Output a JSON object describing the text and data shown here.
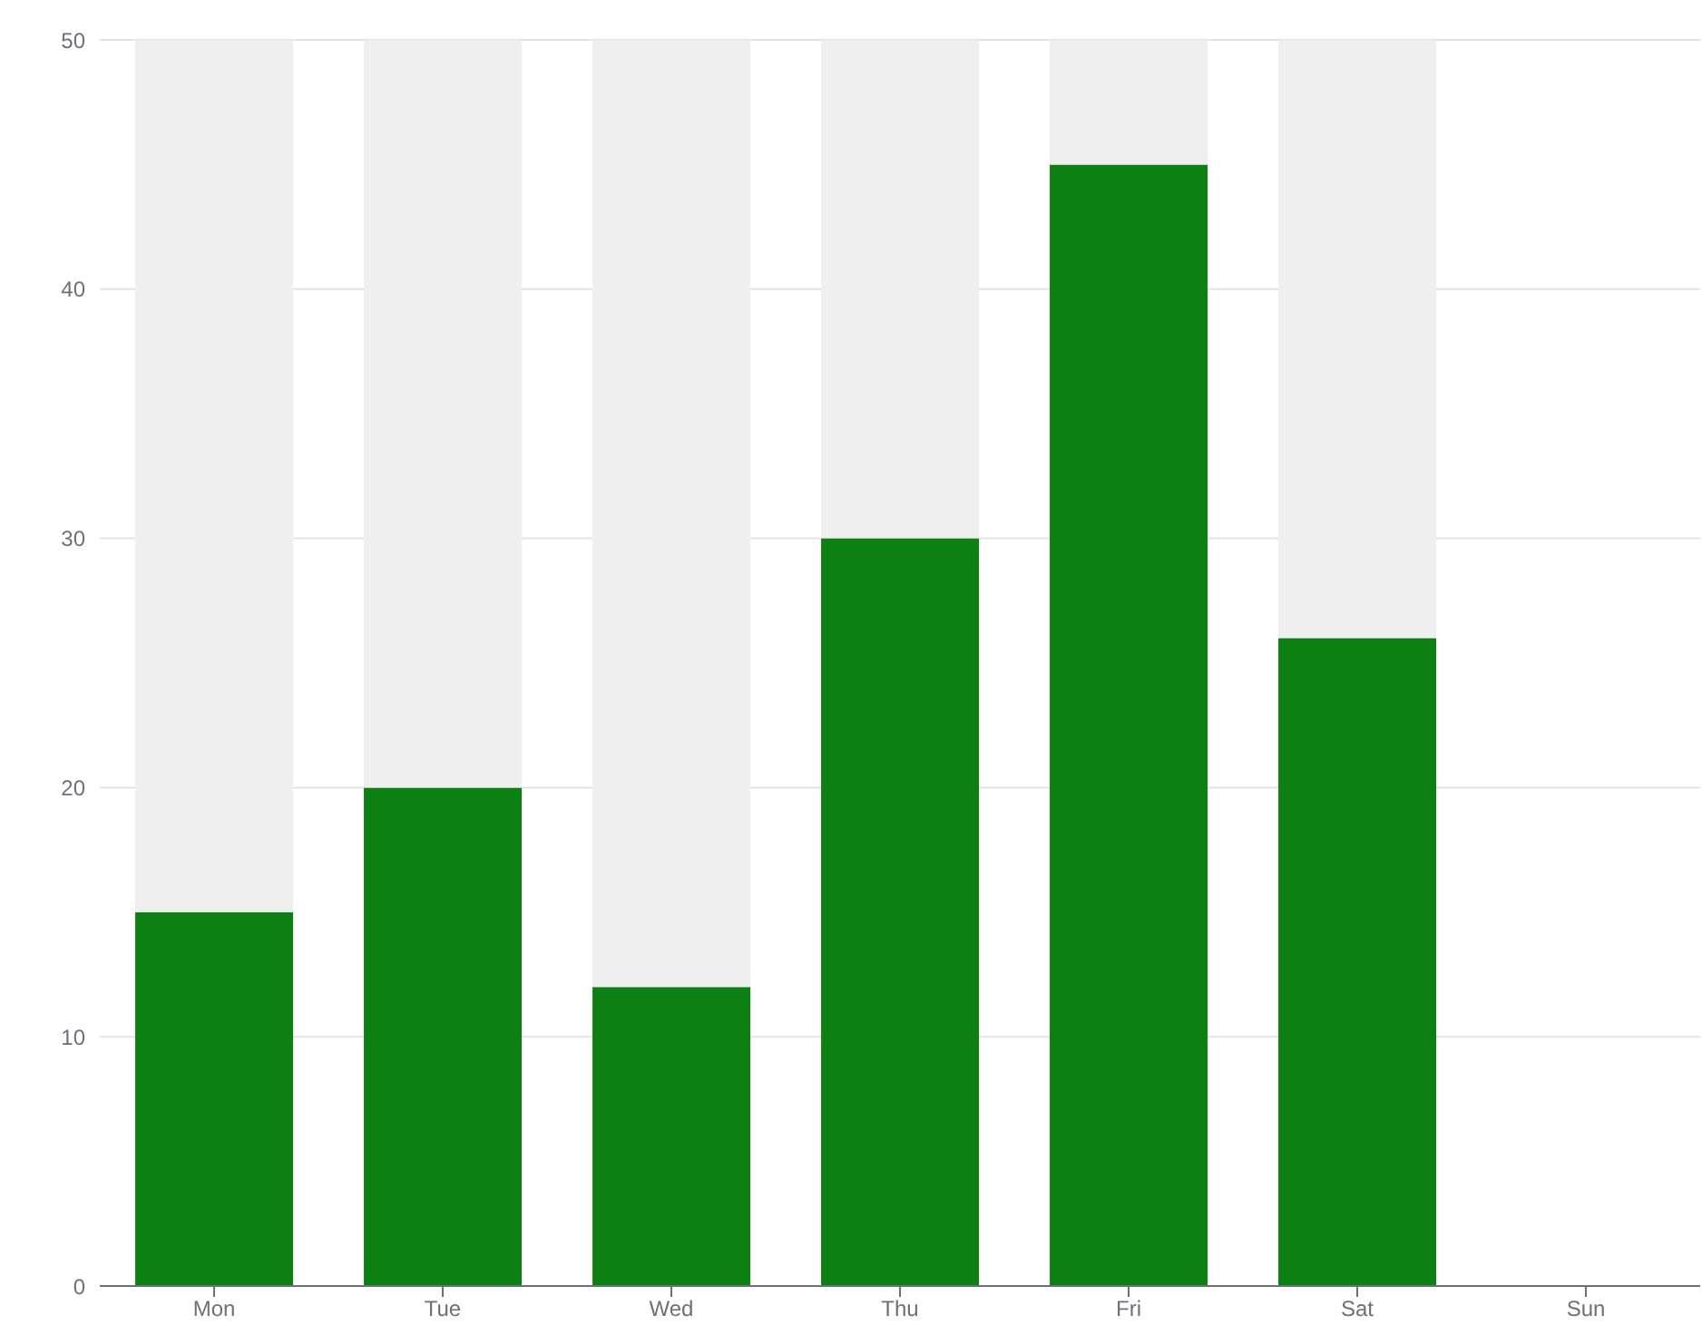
{
  "chart_data": {
    "type": "bar",
    "stacked": true,
    "categories": [
      "Mon",
      "Tue",
      "Wed",
      "Thu",
      "Fri",
      "Sat",
      "Sun"
    ],
    "series": [
      {
        "color": "#0c8012",
        "values": [
          15,
          20,
          12,
          30,
          45,
          26,
          null
        ]
      },
      {
        "color": "#efefef",
        "values": [
          35,
          30,
          38,
          20,
          5,
          24,
          null
        ]
      }
    ],
    "ylim": [
      0,
      50
    ],
    "yticks": [
      0,
      10,
      20,
      30,
      40,
      50
    ],
    "grid": "y"
  }
}
